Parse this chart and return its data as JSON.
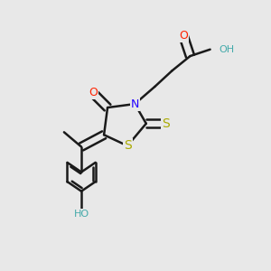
{
  "bg_color": "#e8e8e8",
  "bond_color": "#1a1a1a",
  "bond_width": 1.8,
  "colors": {
    "O": "#ff2200",
    "N": "#2200ff",
    "S": "#aaaa00",
    "C": "#1a1a1a",
    "H_O": "#44aaaa"
  }
}
